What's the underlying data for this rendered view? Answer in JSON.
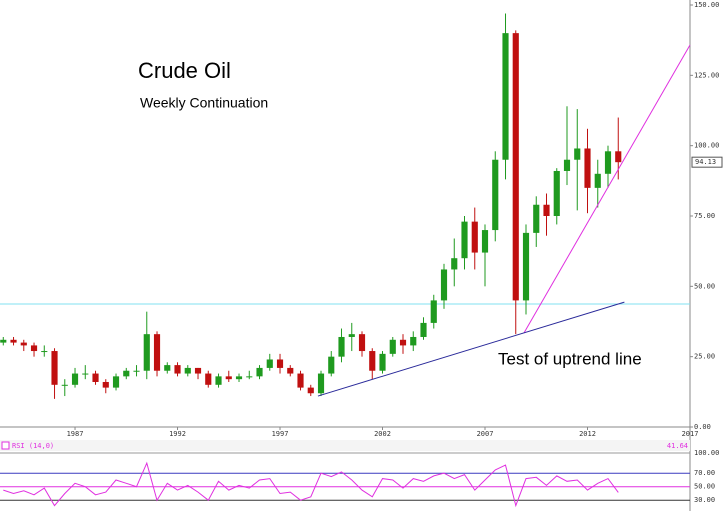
{
  "chart_data": {
    "type": "candlestick",
    "title": "Crude Oil",
    "subtitle": "Weekly Continuation",
    "annotation": "Test of uptrend line",
    "x": [
      1983.5,
      1984,
      1984.5,
      1985,
      1985.5,
      1986,
      1986.5,
      1987,
      1987.5,
      1988,
      1988.5,
      1989,
      1989.5,
      1990,
      1990.5,
      1991,
      1991.5,
      1992,
      1992.5,
      1993,
      1993.5,
      1994,
      1994.5,
      1995,
      1995.5,
      1996,
      1996.5,
      1997,
      1997.5,
      1998,
      1998.5,
      1999,
      1999.5,
      2000,
      2000.5,
      2001,
      2001.5,
      2002,
      2002.5,
      2003,
      2003.5,
      2004,
      2004.5,
      2005,
      2005.5,
      2006,
      2006.5,
      2007,
      2007.5,
      2008,
      2008.5,
      2009,
      2009.5,
      2010,
      2010.5,
      2011,
      2011.5,
      2012,
      2012.5,
      2013,
      2013.5
    ],
    "open": [
      30,
      31,
      30,
      29,
      27,
      27,
      15,
      15,
      19,
      19,
      16,
      14,
      18,
      20,
      20,
      33,
      20,
      22,
      19,
      21,
      19,
      15,
      18,
      17,
      18,
      18,
      21,
      24,
      21,
      19,
      14,
      12,
      19,
      25,
      32,
      33,
      27,
      20,
      26,
      31,
      29,
      32,
      37,
      45,
      56,
      60,
      73,
      62,
      70,
      95,
      140,
      45,
      69,
      79,
      75,
      91,
      95,
      99,
      85,
      90,
      98
    ],
    "high": [
      32,
      32,
      31,
      30,
      29,
      28,
      17,
      21,
      22,
      20,
      17,
      19,
      21,
      22,
      41,
      34,
      23,
      23,
      22,
      21,
      20,
      19,
      20,
      19,
      20,
      22,
      26,
      26,
      22,
      20,
      15,
      20,
      27,
      35,
      37,
      34,
      28,
      27,
      32,
      33,
      34,
      39,
      47,
      58,
      67,
      75,
      78,
      72,
      98,
      147,
      141,
      72,
      82,
      83,
      92,
      114,
      113,
      106,
      95,
      100,
      110
    ],
    "low": [
      29,
      29,
      27,
      25,
      25,
      10,
      11,
      14,
      17,
      15,
      12,
      13,
      17,
      18,
      17,
      18,
      19,
      18,
      18,
      17,
      14,
      14,
      16,
      16,
      17,
      17,
      20,
      19,
      18,
      13,
      11,
      11,
      18,
      23,
      27,
      25,
      17,
      19,
      25,
      26,
      27,
      31,
      35,
      42,
      50,
      56,
      56,
      50,
      66,
      88,
      33,
      40,
      64,
      68,
      72,
      86,
      77,
      76,
      78,
      85,
      88
    ],
    "close": [
      31,
      30,
      29,
      27,
      27,
      15,
      15,
      19,
      19,
      16,
      14,
      18,
      20,
      20,
      33,
      20,
      22,
      19,
      21,
      19,
      15,
      18,
      17,
      18,
      18,
      21,
      24,
      21,
      19,
      14,
      12,
      19,
      25,
      32,
      33,
      27,
      20,
      26,
      31,
      29,
      32,
      37,
      45,
      56,
      60,
      73,
      62,
      70,
      95,
      140,
      45,
      69,
      79,
      75,
      91,
      95,
      99,
      85,
      90,
      98,
      94.13
    ],
    "up_color": "#1f9a1f",
    "down_color": "#c01010",
    "xlim": [
      1983.34,
      2017
    ],
    "xticks": [
      1987,
      1992,
      1997,
      2002,
      2007,
      2012,
      2017
    ],
    "ylim": [
      0,
      150
    ],
    "yticks": [
      {
        "value": 0,
        "label": "0.00"
      },
      {
        "value": 25,
        "label": "25.00"
      },
      {
        "value": 50,
        "label": "50.00"
      },
      {
        "value": 75,
        "label": "75.00"
      },
      {
        "value": 100,
        "label": "100.00"
      },
      {
        "value": 125,
        "label": "125.00"
      },
      {
        "value": 150,
        "label": "150.00"
      }
    ],
    "lines": [
      {
        "x": [
          2008.9,
          2017
        ],
        "y": [
          33.4,
          135.8
        ],
        "color": "#e030e0"
      },
      {
        "x": [
          1998.85,
          2013.8
        ],
        "y": [
          11,
          44.4
        ],
        "color": "#2a2a9a"
      }
    ],
    "hlines": [
      {
        "y": 43.7,
        "color": "#80e0f0"
      }
    ],
    "rsi": {
      "label": "RSI (14,0)",
      "color": "#e030e0",
      "values": [
        45,
        40,
        44,
        38,
        48,
        22,
        40,
        55,
        50,
        38,
        42,
        60,
        55,
        50,
        85,
        30,
        55,
        45,
        52,
        42,
        30,
        58,
        45,
        52,
        48,
        60,
        62,
        40,
        42,
        30,
        35,
        70,
        65,
        72,
        60,
        45,
        35,
        62,
        60,
        48,
        62,
        58,
        66,
        70,
        62,
        68,
        45,
        60,
        75,
        82,
        22,
        62,
        64,
        52,
        66,
        58,
        60,
        45,
        55,
        62,
        41.64
      ],
      "ylim": [
        14,
        100
      ],
      "yticks": [
        {
          "value": 30,
          "label": "30.00"
        },
        {
          "value": 50,
          "label": "50.00"
        },
        {
          "value": 70,
          "label": "70.00"
        },
        {
          "value": 100,
          "label": "100.00"
        }
      ],
      "line_colors": [
        "#333333",
        "#e030e0",
        "#3a3abf",
        "#999999"
      ]
    }
  }
}
